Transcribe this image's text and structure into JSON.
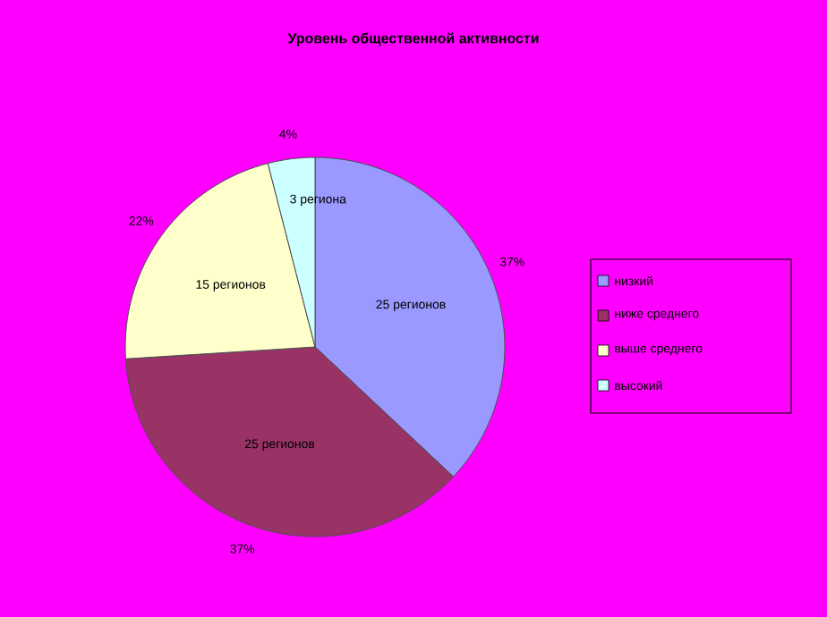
{
  "chart_data": {
    "type": "pie",
    "title": "Уровень общественной активности",
    "categories": [
      "низкий",
      "ниже среднего",
      "выше среднего",
      "высокий"
    ],
    "values": [
      37,
      37,
      22,
      4
    ],
    "colors": [
      "#9999ff",
      "#993366",
      "#ffffcc",
      "#ccffff"
    ],
    "value_labels": [
      "37%",
      "37%",
      "22%",
      "4%"
    ],
    "annotations": [
      "25 регионов",
      "25 регионов",
      "15 регионов",
      "3 региона"
    ],
    "legend": "right"
  }
}
